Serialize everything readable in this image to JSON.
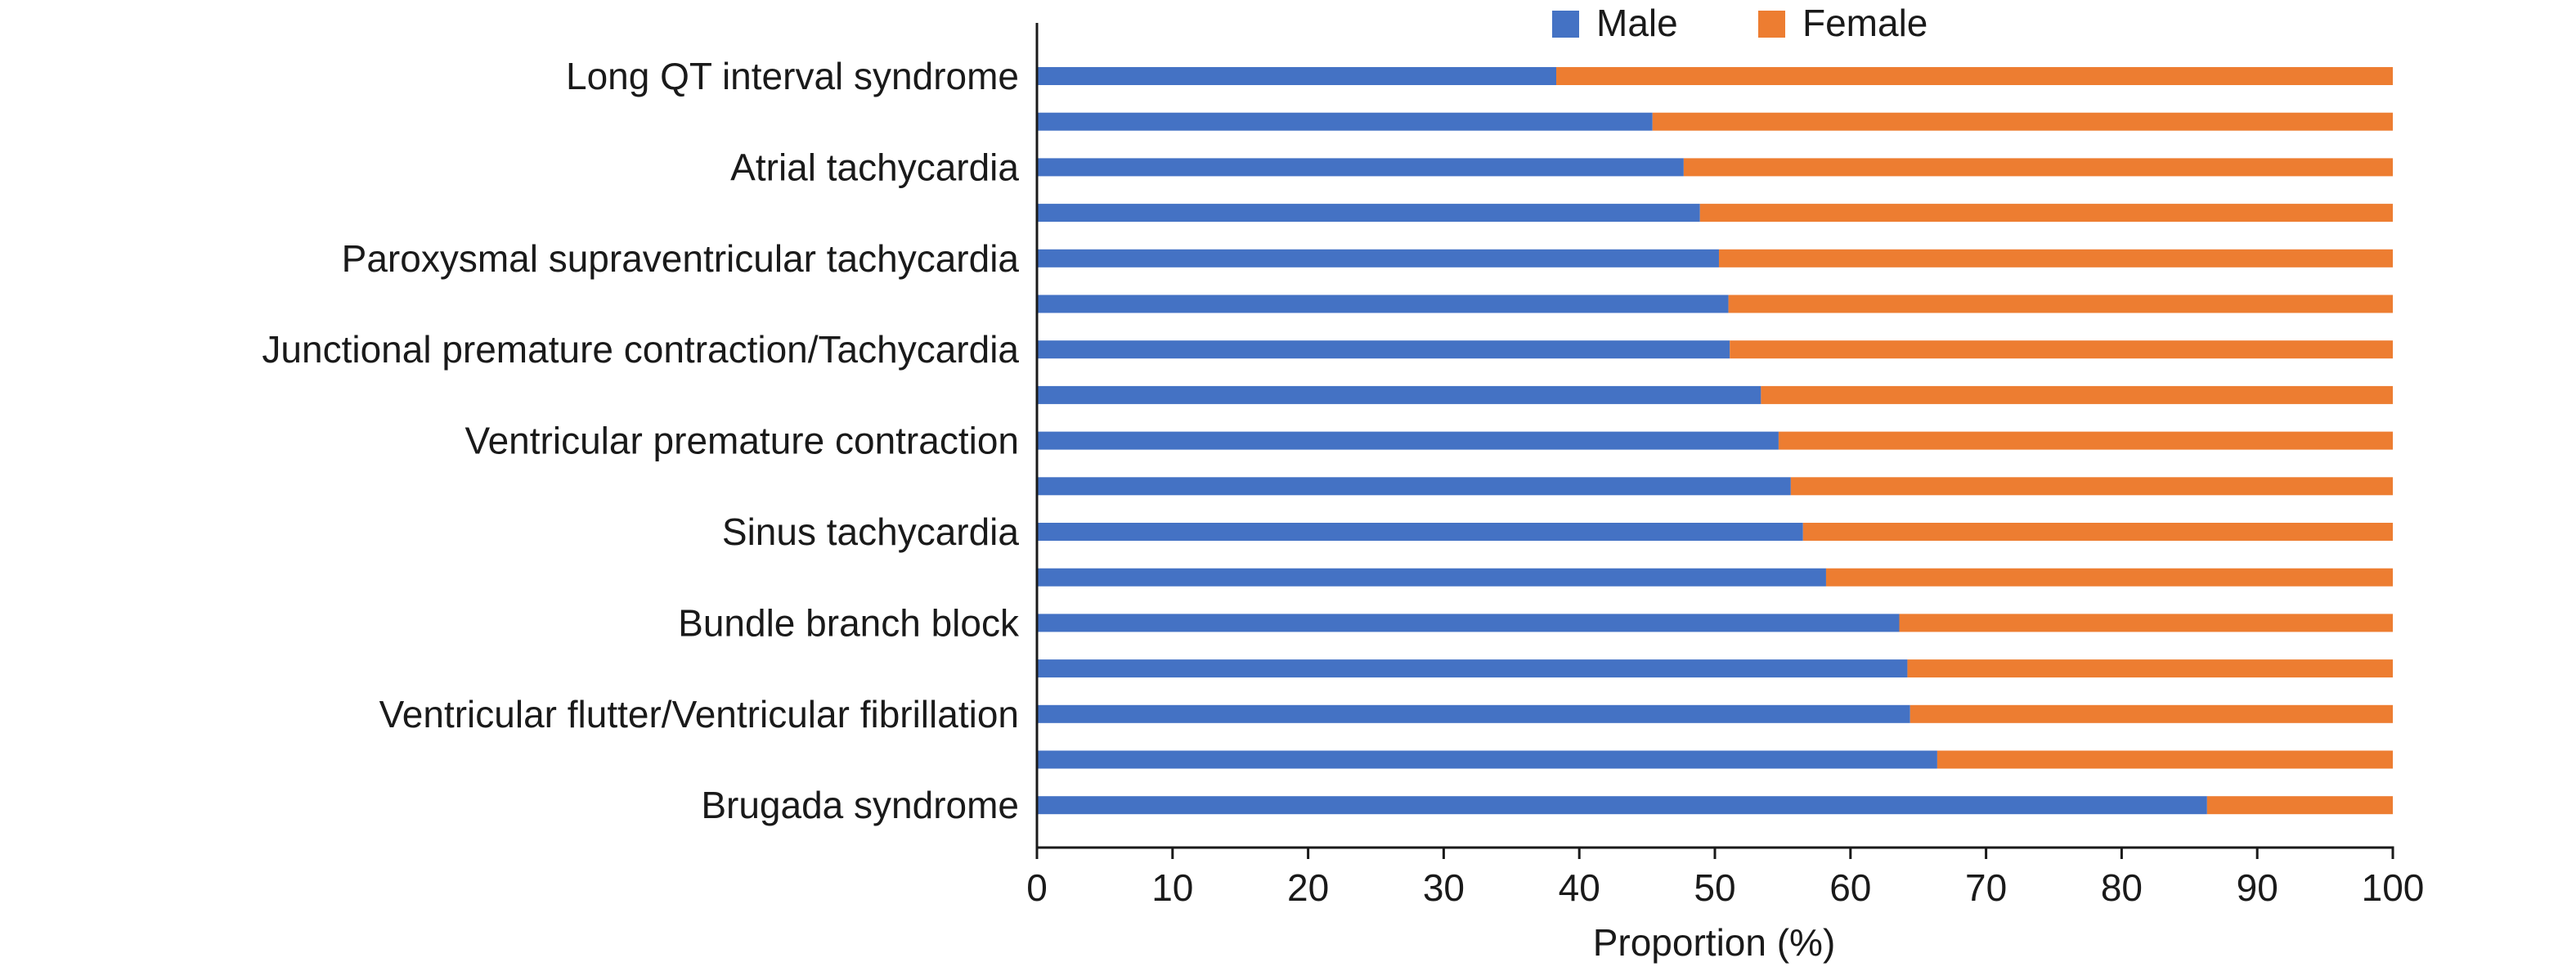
{
  "chart_data": {
    "type": "bar",
    "orientation": "horizontal",
    "stacked": true,
    "categories": [
      "Long QT interval syndrome",
      "",
      "Atrial tachycardia",
      "",
      "Paroxysmal supraventricular tachycardia",
      "",
      "Junctional premature contraction/Tachycardia",
      "",
      "Ventricular premature contraction",
      "",
      "Sinus tachycardia",
      "",
      "Bundle branch block",
      "",
      "Ventricular flutter/Ventricular fibrillation",
      "",
      "Brugada syndrome"
    ],
    "series": [
      {
        "name": "Male",
        "color": "#4472C4",
        "values": [
          38.3,
          45.4,
          47.7,
          48.9,
          50.3,
          51.0,
          51.1,
          53.4,
          54.7,
          55.6,
          56.5,
          58.2,
          63.6,
          64.2,
          64.4,
          66.4,
          86.3
        ]
      },
      {
        "name": "Female",
        "color": "#ED7D31",
        "values": [
          61.7,
          54.6,
          52.3,
          51.1,
          49.7,
          49.0,
          48.9,
          46.6,
          45.3,
          44.4,
          43.5,
          41.8,
          36.4,
          35.8,
          35.6,
          33.6,
          13.7
        ]
      }
    ],
    "xlabel": "Proportion (%)",
    "ylabel": "",
    "xlim": [
      0,
      100
    ],
    "xticks": [
      "0",
      "10",
      "20",
      "30",
      "40",
      "50",
      "60",
      "70",
      "80",
      "90",
      "100"
    ],
    "grid": false,
    "legend_position": "top"
  }
}
